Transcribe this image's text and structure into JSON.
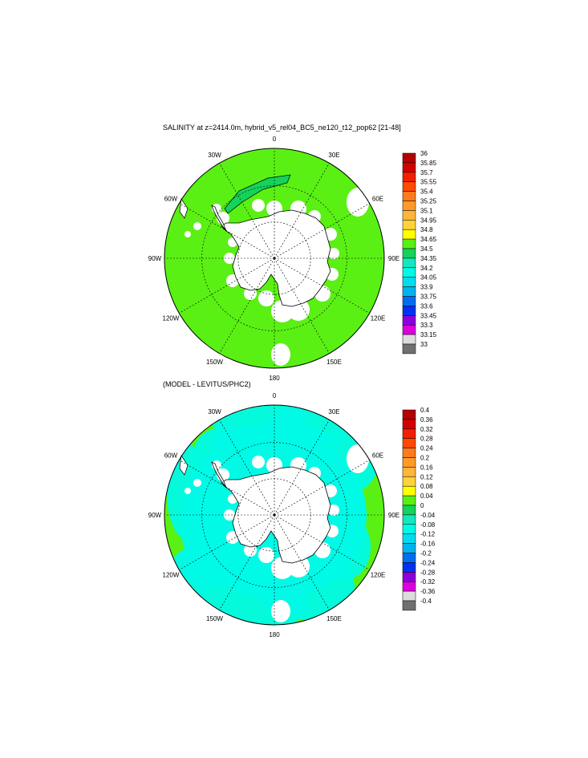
{
  "panels": [
    {
      "title": "SALINITY at z=2414.0m, hybrid_v5_rel04_BC5_ne120_t12_pop62 [21-48]",
      "lon_labels": [
        "0",
        "30E",
        "60E",
        "90E",
        "120E",
        "150E",
        "180",
        "150W",
        "120W",
        "90W",
        "60W",
        "30W"
      ],
      "colorbar": {
        "labels": [
          "36",
          "35.85",
          "35.7",
          "35.55",
          "35.4",
          "35.25",
          "35.1",
          "34.95",
          "34.8",
          "34.65",
          "34.5",
          "34.35",
          "34.2",
          "34.05",
          "33.9",
          "33.75",
          "33.6",
          "33.45",
          "33.3",
          "33.15",
          "33"
        ],
        "colors": [
          "#b40000",
          "#d20000",
          "#f02000",
          "#ff4a00",
          "#ff7a1e",
          "#ff9a28",
          "#ffb43c",
          "#ffd23c",
          "#ffff00",
          "#5af014",
          "#14d25a",
          "#14e6be",
          "#00fae6",
          "#00dcf0",
          "#00b4f0",
          "#006ef0",
          "#0032f0",
          "#8c00dc",
          "#dc00dc",
          "#dcdcdc",
          "#707070"
        ]
      },
      "field_color": "#5af014"
    },
    {
      "title": "(MODEL - LEVITUS/PHC2)",
      "lon_labels": [
        "0",
        "30E",
        "60E",
        "90E",
        "120E",
        "150E",
        "180",
        "150W",
        "120W",
        "90W",
        "60W",
        "30W"
      ],
      "colorbar": {
        "labels": [
          "0.4",
          "0.36",
          "0.32",
          "0.28",
          "0.24",
          "0.2",
          "0.16",
          "0.12",
          "0.08",
          "0.04",
          "0",
          "-0.04",
          "-0.08",
          "-0.12",
          "-0.16",
          "-0.2",
          "-0.24",
          "-0.28",
          "-0.32",
          "-0.36",
          "-0.4"
        ],
        "colors": [
          "#b40000",
          "#d20000",
          "#f02000",
          "#ff4a00",
          "#ff7a1e",
          "#ff9a28",
          "#ffb43c",
          "#ffd23c",
          "#ffff00",
          "#5af014",
          "#14d25a",
          "#14e6be",
          "#00fae6",
          "#00dcf0",
          "#00b4f0",
          "#006ef0",
          "#0032f0",
          "#8c00dc",
          "#dc00dc",
          "#dcdcdc",
          "#707070"
        ]
      },
      "field_color": "#5af014",
      "anomaly_color": "#00fae6"
    }
  ]
}
